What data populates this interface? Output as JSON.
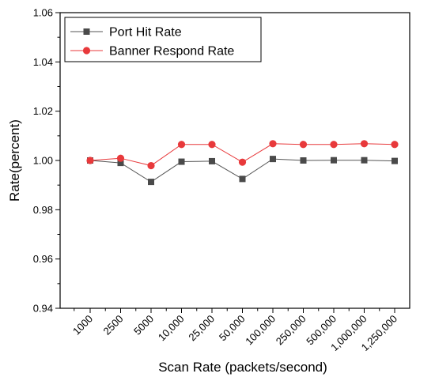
{
  "chart_data": {
    "type": "line",
    "title": "",
    "xlabel": "Scan Rate (packets/second)",
    "ylabel": "Rate(percent)",
    "categories": [
      "1000",
      "2500",
      "5000",
      "10,000",
      "25,000",
      "50,000",
      "100,000",
      "250,000",
      "500,000",
      "1,000,000",
      "1,250,000"
    ],
    "ylim": [
      0.94,
      1.06
    ],
    "yticks": [
      "0.94",
      "0.96",
      "0.98",
      "1.00",
      "1.02",
      "1.04",
      "1.06"
    ],
    "grid": false,
    "legend_position": "top-left",
    "series": [
      {
        "name": "Port Hit Rate",
        "color": "#555555",
        "marker": "square",
        "values": [
          1.0,
          0.999,
          0.9913,
          0.9995,
          0.9997,
          0.9925,
          1.0006,
          1.0,
          1.0001,
          1.0001,
          0.9998
        ]
      },
      {
        "name": "Banner Respond Rate",
        "color": "#e8393b",
        "marker": "circle",
        "values": [
          1.0,
          1.0009,
          0.9979,
          1.0065,
          1.0065,
          0.9993,
          1.0068,
          1.0065,
          1.0065,
          1.0068,
          1.0065
        ]
      }
    ]
  }
}
